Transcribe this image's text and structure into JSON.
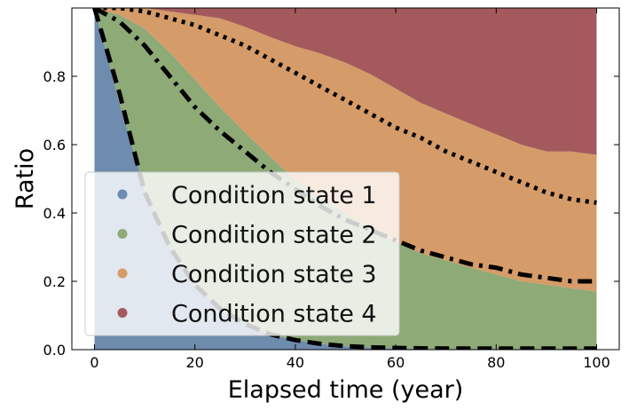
{
  "chart_data": {
    "type": "area",
    "stacked": true,
    "xlabel": "Elapsed time (year)",
    "ylabel": "Ratio",
    "xlim": [
      -4.5,
      104.5
    ],
    "ylim": [
      0.0,
      1.0
    ],
    "xticks": [
      0,
      20,
      40,
      60,
      80,
      100
    ],
    "yticks": [
      0.0,
      0.2,
      0.4,
      0.6,
      0.8
    ],
    "ytick_labels": [
      "0.0",
      "0.2",
      "0.4",
      "0.6",
      "0.8"
    ],
    "xtick_labels": [
      "0",
      "20",
      "40",
      "60",
      "80",
      "100"
    ],
    "x": [
      0,
      5,
      10,
      15,
      20,
      25,
      30,
      35,
      40,
      45,
      50,
      55,
      60,
      65,
      70,
      75,
      80,
      85,
      90,
      95,
      100
    ],
    "series": [
      {
        "name": "Condition state 1",
        "color": "#6e8cad",
        "values": [
          1.0,
          0.72,
          0.47,
          0.3,
          0.19,
          0.12,
          0.075,
          0.045,
          0.028,
          0.017,
          0.01,
          0.006,
          0.004,
          0.002,
          0.001,
          0.0,
          0.0,
          0.0,
          0.0,
          0.0,
          0.0
        ]
      },
      {
        "name": "Condition state 2",
        "color": "#8daa77",
        "values": [
          0.0,
          0.26,
          0.47,
          0.57,
          0.6,
          0.59,
          0.56,
          0.52,
          0.47,
          0.43,
          0.39,
          0.35,
          0.31,
          0.28,
          0.26,
          0.24,
          0.22,
          0.2,
          0.19,
          0.18,
          0.17
        ]
      },
      {
        "name": "Condition state 3",
        "color": "#d59b69",
        "values": [
          0.0,
          0.02,
          0.06,
          0.12,
          0.19,
          0.26,
          0.31,
          0.35,
          0.39,
          0.42,
          0.44,
          0.45,
          0.45,
          0.44,
          0.43,
          0.42,
          0.41,
          0.4,
          0.39,
          0.4,
          0.4
        ]
      },
      {
        "name": "Condition state 4",
        "color": "#a45a5c",
        "values": [
          0.0,
          0.0,
          0.0,
          0.01,
          0.02,
          0.03,
          0.055,
          0.085,
          0.112,
          0.133,
          0.16,
          0.194,
          0.236,
          0.278,
          0.309,
          0.34,
          0.37,
          0.4,
          0.42,
          0.42,
          0.43
        ]
      }
    ],
    "boundary_lines": [
      {
        "style": "dashed",
        "values": [
          1.0,
          0.75,
          0.46,
          0.3,
          0.19,
          0.12,
          0.075,
          0.045,
          0.028,
          0.017,
          0.01,
          0.007,
          0.005,
          0.004,
          0.003,
          0.003,
          0.003,
          0.003,
          0.003,
          0.003,
          0.003
        ]
      },
      {
        "style": "dashdot",
        "values": [
          1.0,
          0.96,
          0.89,
          0.8,
          0.71,
          0.64,
          0.58,
          0.52,
          0.47,
          0.42,
          0.38,
          0.35,
          0.32,
          0.29,
          0.27,
          0.25,
          0.24,
          0.22,
          0.21,
          0.2,
          0.2
        ]
      },
      {
        "style": "dotted",
        "values": [
          1.0,
          1.0,
          0.99,
          0.97,
          0.95,
          0.92,
          0.89,
          0.85,
          0.81,
          0.77,
          0.73,
          0.69,
          0.65,
          0.62,
          0.58,
          0.55,
          0.52,
          0.49,
          0.46,
          0.44,
          0.43
        ]
      }
    ],
    "legend": {
      "placement": "lower-left",
      "entries": [
        "Condition state 1",
        "Condition state 2",
        "Condition state 3",
        "Condition state 4"
      ],
      "colors": [
        "#6e8cad",
        "#8daa77",
        "#d59b69",
        "#a45a5c"
      ]
    },
    "grid": false
  }
}
